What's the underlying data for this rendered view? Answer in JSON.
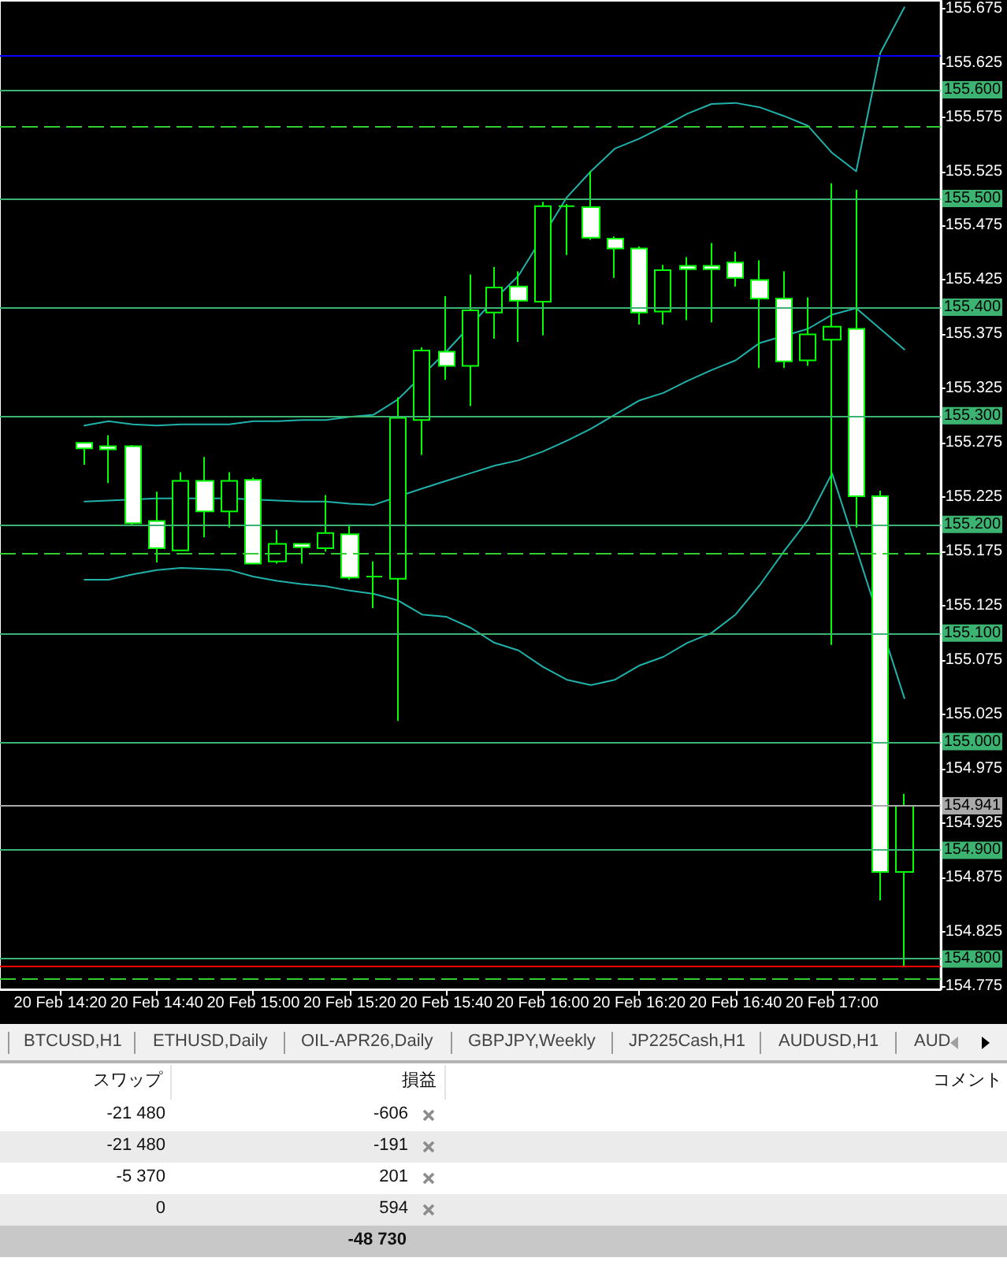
{
  "chart_data": {
    "type": "candlestick",
    "categories": [
      "20 Feb 14:20",
      null,
      null,
      null,
      "20 Feb 14:40",
      null,
      null,
      null,
      "20 Feb 15:00",
      null,
      null,
      null,
      "20 Feb 15:20",
      null,
      null,
      null,
      "20 Feb 15:40",
      null,
      null,
      null,
      "20 Feb 16:00",
      null,
      null,
      null,
      "20 Feb 16:20",
      null,
      null,
      null,
      "20 Feb 16:40",
      null,
      null,
      null,
      "20 Feb 17:00",
      null,
      null,
      null
    ],
    "ohlc": [
      null,
      [
        155.275,
        155.275,
        155.255,
        155.27
      ],
      [
        155.272,
        155.282,
        155.238,
        155.269
      ],
      [
        155.272,
        155.273,
        155.199,
        155.201
      ],
      [
        155.203,
        155.23,
        155.165,
        155.178
      ],
      [
        155.176,
        155.248,
        155.176,
        155.24
      ],
      [
        155.24,
        155.262,
        155.188,
        155.212
      ],
      [
        155.212,
        155.248,
        155.197,
        155.24
      ],
      [
        155.241,
        155.243,
        155.164,
        155.164
      ],
      [
        155.166,
        155.195,
        155.164,
        155.182
      ],
      [
        155.182,
        155.182,
        155.164,
        155.179
      ],
      [
        155.178,
        155.227,
        155.175,
        155.192
      ],
      [
        155.191,
        155.2,
        155.149,
        155.151
      ],
      [
        155.152,
        155.166,
        155.123,
        155.152
      ],
      [
        155.15,
        155.317,
        155.019,
        155.298
      ],
      [
        155.296,
        155.363,
        155.264,
        155.36
      ],
      [
        155.359,
        155.41,
        155.333,
        155.346
      ],
      [
        155.346,
        155.43,
        155.309,
        155.397
      ],
      [
        155.395,
        155.437,
        155.371,
        155.418
      ],
      [
        155.419,
        155.433,
        155.368,
        155.406
      ],
      [
        155.405,
        155.497,
        155.374,
        155.493
      ],
      [
        155.493,
        155.495,
        155.448,
        155.493
      ],
      [
        155.492,
        155.525,
        155.462,
        155.464
      ],
      [
        155.463,
        155.465,
        155.427,
        155.454
      ],
      [
        155.454,
        155.456,
        155.384,
        155.395
      ],
      [
        155.396,
        155.439,
        155.384,
        155.434
      ],
      [
        155.438,
        155.446,
        155.388,
        155.435
      ],
      [
        155.438,
        155.459,
        155.386,
        155.435
      ],
      [
        155.441,
        155.451,
        155.419,
        155.427
      ],
      [
        155.425,
        155.443,
        155.344,
        155.408
      ],
      [
        155.408,
        155.433,
        155.344,
        155.35
      ],
      [
        155.351,
        155.409,
        155.346,
        155.375
      ],
      [
        155.37,
        155.514,
        155.089,
        155.382
      ],
      [
        155.38,
        155.508,
        155.197,
        155.226
      ],
      [
        155.226,
        155.231,
        154.854,
        154.88
      ],
      [
        154.88,
        154.952,
        154.793,
        154.941
      ]
    ],
    "color": "#00ff00",
    "colors": [
      null,
      "#ffffff",
      "#ffffff",
      "#ffffff",
      "#ffffff",
      "#000000",
      "#ffffff",
      "#000000",
      "#ffffff",
      "#000000",
      "#ffffff",
      "#000000",
      "#ffffff",
      "#00ff00",
      "#000000",
      "#000000",
      "#ffffff",
      "#000000",
      "#000000",
      "#ffffff",
      "#000000",
      "#00ff00",
      "#ffffff",
      "#ffffff",
      "#ffffff",
      "#000000",
      "#ffffff",
      "#ffffff",
      "#ffffff",
      "#ffffff",
      "#ffffff",
      "#000000",
      "#000000",
      "#ffffff",
      "#ffffff",
      "#000000"
    ],
    "series": [
      {
        "type": "line",
        "color": "#20b2aa",
        "values": [
          null,
          155.291,
          155.295,
          155.292,
          155.291,
          155.292,
          155.292,
          155.292,
          155.295,
          155.295,
          155.296,
          155.296,
          155.299,
          155.301,
          155.315,
          null,
          155.359,
          null,
          155.407,
          155.429,
          null,
          155.501,
          155.525,
          155.546,
          155.555,
          155.566,
          155.578,
          155.587,
          155.588,
          155.584,
          155.576,
          155.567,
          155.542,
          155.525,
          155.634,
          155.676
        ]
      },
      {
        "type": "line",
        "color": "#20b2aa",
        "values": [
          null,
          155.221,
          155.222,
          null,
          155.224,
          null,
          155.224,
          155.224,
          null,
          155.222,
          155.221,
          155.221,
          155.219,
          155.218,
          null,
          155.233,
          155.24,
          155.247,
          155.254,
          155.259,
          155.267,
          155.277,
          155.288,
          155.301,
          155.314,
          155.321,
          155.332,
          155.342,
          155.351,
          155.367,
          null,
          155.38,
          155.393,
          155.399,
          155.38,
          155.361
        ]
      },
      {
        "type": "line",
        "color": "#20b2aa",
        "values": [
          null,
          155.149,
          155.149,
          155.154,
          155.158,
          155.16,
          155.159,
          155.158,
          155.152,
          155.148,
          155.145,
          155.143,
          155.139,
          155.136,
          155.13,
          155.117,
          155.115,
          155.105,
          155.091,
          155.084,
          155.069,
          155.057,
          155.052,
          155.057,
          155.07,
          155.078,
          155.091,
          155.1,
          155.117,
          155.144,
          155.175,
          155.204,
          155.247,
          null,
          null,
          155.04
        ]
      }
    ],
    "marker": "none",
    "ylim": [
      154.772,
      155.682
    ],
    "yticks": [
      154.775,
      154.825,
      154.875,
      154.925,
      154.975,
      155.025,
      155.075,
      155.125,
      155.175,
      155.225,
      155.275,
      155.325,
      155.375,
      155.425,
      155.475,
      155.525,
      155.575,
      155.625,
      155.675
    ],
    "ref_lines": [
      {
        "axis": "y",
        "value": 155.632,
        "color": "#0000ff"
      },
      {
        "axis": "y",
        "value": 155.6,
        "label": "155.600",
        "color": "#3cb371"
      },
      {
        "axis": "y",
        "value": 155.5,
        "label": "155.500",
        "color": "#3cb371"
      },
      {
        "axis": "y",
        "value": 155.4,
        "label": "155.400",
        "color": "#3cb371"
      },
      {
        "axis": "y",
        "value": 155.3,
        "label": "155.300",
        "color": "#3cb371"
      },
      {
        "axis": "y",
        "value": 155.2,
        "label": "155.200",
        "color": "#3cb371"
      },
      {
        "axis": "y",
        "value": 155.1,
        "label": "155.100",
        "color": "#3cb371"
      },
      {
        "axis": "y",
        "value": 155.0,
        "label": "155.000",
        "color": "#3cb371"
      },
      {
        "axis": "y",
        "value": 154.9,
        "label": "154.900",
        "color": "#3cb371"
      },
      {
        "axis": "y",
        "value": 154.8,
        "label": "154.800",
        "color": "#3cb371"
      },
      {
        "axis": "y",
        "value": 154.941,
        "label": "154.941",
        "color": "#a9a9a9"
      },
      {
        "axis": "y",
        "value": 154.794,
        "color": "#ff0000"
      },
      {
        "axis": "y",
        "value": 155.566,
        "color": "#32cd32",
        "line_style": "dashed"
      },
      {
        "axis": "y",
        "value": 155.173,
        "color": "#32cd32",
        "line_style": "dashed"
      },
      {
        "axis": "y",
        "value": 154.782,
        "color": "#32cd32",
        "line_style": "dashed"
      }
    ],
    "annotations": [
      "BTCUSD,H1",
      "ETHUSD,Daily",
      "OIL-APR26,Daily",
      "GBPJPY,Weekly",
      "JP225Cash,H1",
      "AUDUSD,H1",
      "AUD",
      "スワップ",
      "損益",
      "コメント",
      "-21 480",
      "-606",
      "-21 480",
      "-191",
      "-5 370",
      "201",
      "0",
      "594",
      "-48 730"
    ]
  }
}
